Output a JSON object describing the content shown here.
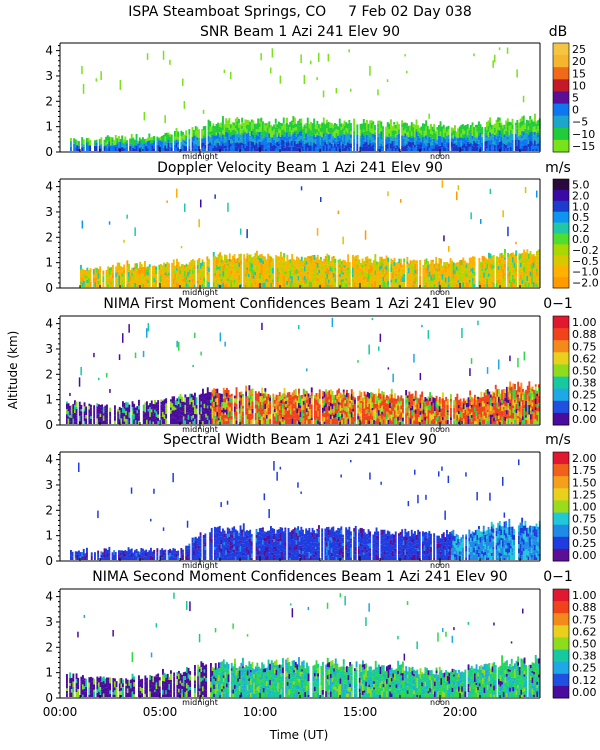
{
  "header": {
    "station": "ISPA Steamboat Springs, CO",
    "date": "7 Feb 02 Day 038"
  },
  "x_axis": {
    "label": "Time (UT)",
    "ticks": [
      "00:00",
      "05:00",
      "10:00",
      "15:00",
      "20:00"
    ],
    "tick_hours": [
      0,
      5,
      10,
      15,
      20
    ],
    "range_hours": [
      0,
      24
    ],
    "markers": [
      {
        "label": "midnight",
        "hour": 7.0
      },
      {
        "label": "noon",
        "hour": 19.0
      }
    ]
  },
  "y_axis": {
    "label": "Altitude (km)",
    "ticks": [
      "0",
      "1",
      "2",
      "3",
      "4"
    ],
    "range_km": [
      0,
      4.3
    ]
  },
  "colors": {
    "snr": [
      "#78e21a",
      "#20cb3c",
      "#1ea5cc",
      "#0d76f0",
      "#1b36c8",
      "#5a0f96",
      "#c41a27",
      "#f06a1a",
      "#f5b52d",
      "#f5c542"
    ],
    "velocity": [
      "#ff9a00",
      "#ffb000",
      "#d8c800",
      "#a8d800",
      "#50dd30",
      "#20c8a8",
      "#0c96f0",
      "#1c3ccc",
      "#3a0aa6",
      "#2a0a3c"
    ],
    "confidence": [
      "#4a0c9c",
      "#2050e0",
      "#1ea8e6",
      "#18c8a0",
      "#30d848",
      "#8edc1c",
      "#e8d01c",
      "#f58a1c",
      "#f0431c",
      "#e01830"
    ],
    "width": [
      "#5a0f96",
      "#1e3ce0",
      "#1e8ce6",
      "#20c8d8",
      "#30d848",
      "#9adc1c",
      "#e8d01c",
      "#f5a01c",
      "#f0621c",
      "#e01830"
    ]
  },
  "chart_data": [
    {
      "type": "heatmap",
      "title": "SNR Beam 1 Azi 241 Elev 90",
      "unit": "dB",
      "colorbar_labels": [
        "25",
        "20",
        "15",
        "10",
        "5",
        "0",
        "−5",
        "−10",
        "−15"
      ],
      "colorbar_range": [
        -17,
        28
      ],
      "palette": "snr",
      "xlabel": "Time (UT)",
      "ylabel": "Altitude (km)",
      "xlim": [
        0,
        24
      ],
      "ylim": [
        0,
        4.3
      ],
      "main_layer_top_km": [
        [
          0,
          0.4
        ],
        [
          2,
          0.45
        ],
        [
          4,
          0.5
        ],
        [
          6,
          0.75
        ],
        [
          8,
          1.15
        ],
        [
          10,
          1.15
        ],
        [
          12,
          1.15
        ],
        [
          14,
          1.1
        ],
        [
          16,
          1.1
        ],
        [
          18,
          1.0
        ],
        [
          20,
          0.9
        ],
        [
          22,
          1.2
        ],
        [
          24,
          1.3
        ]
      ],
      "layer_values_db": {
        "near_surface": -8,
        "layer_core": -13,
        "upper_sparse": -15
      },
      "data_extent_hours": [
        0.5,
        24
      ]
    },
    {
      "type": "heatmap",
      "title": "Doppler Velocity Beam 1 Azi 241 Elev 90",
      "unit": "m/s",
      "colorbar_labels": [
        "5.0",
        "2.0",
        "1.0",
        "0.5",
        "0.2",
        "0.0",
        "−0.2",
        "−0.5",
        "−1.0",
        "−2.0"
      ],
      "colorbar_range": [
        -2.0,
        5.0
      ],
      "palette": "velocity",
      "xlabel": "Time (UT)",
      "ylabel": "Altitude (km)",
      "xlim": [
        0,
        24
      ],
      "ylim": [
        0,
        4.3
      ],
      "main_layer_top_km": [
        [
          0,
          0.6
        ],
        [
          3,
          0.8
        ],
        [
          6,
          0.9
        ],
        [
          7.5,
          1.2
        ],
        [
          10,
          1.2
        ],
        [
          13,
          1.15
        ],
        [
          16,
          1.1
        ],
        [
          18.5,
          1.0
        ],
        [
          20,
          1.0
        ],
        [
          22,
          1.3
        ],
        [
          24,
          1.4
        ]
      ],
      "layer_values_ms": {
        "dominant": -0.5,
        "secondary": 0.0,
        "sparse_high": 1.0
      },
      "data_extent_hours": [
        1.0,
        24
      ]
    },
    {
      "type": "heatmap",
      "title": "NIMA First Moment Confidences Beam 1 Azi 241 Elev 90",
      "unit": "0−1",
      "colorbar_labels": [
        "1.00",
        "0.88",
        "0.75",
        "0.62",
        "0.50",
        "0.38",
        "0.25",
        "0.12",
        "0.00"
      ],
      "colorbar_range": [
        0.0,
        1.0
      ],
      "palette": "confidence",
      "xlabel": "Time (UT)",
      "ylabel": "Altitude (km)",
      "xlim": [
        0,
        24
      ],
      "ylim": [
        0,
        4.3
      ],
      "main_layer_top_km": [
        [
          0,
          0.8
        ],
        [
          3,
          0.7
        ],
        [
          6,
          1.0
        ],
        [
          7.5,
          1.3
        ],
        [
          10,
          1.3
        ],
        [
          13,
          1.25
        ],
        [
          16,
          1.2
        ],
        [
          18.5,
          1.05
        ],
        [
          20,
          1.0
        ],
        [
          22,
          1.4
        ],
        [
          24,
          1.45
        ]
      ],
      "layer_values": {
        "early_low_confidence": 0.0,
        "daytime_core": 0.92,
        "upper_sparse": 0.4
      },
      "data_extent_hours": [
        0.3,
        24
      ]
    },
    {
      "type": "heatmap",
      "title": "Spectral Width Beam 1 Azi 241 Elev 90",
      "unit": "m/s",
      "colorbar_labels": [
        "2.00",
        "1.75",
        "1.50",
        "1.25",
        "1.00",
        "0.75",
        "0.50",
        "0.25",
        "0.00"
      ],
      "colorbar_range": [
        0.0,
        2.25
      ],
      "palette": "width",
      "xlabel": "Time (UT)",
      "ylabel": "Altitude (km)",
      "xlim": [
        0,
        24
      ],
      "ylim": [
        0,
        4.3
      ],
      "main_layer_top_km": [
        [
          0,
          0.3
        ],
        [
          6,
          0.4
        ],
        [
          7.5,
          1.2
        ],
        [
          10,
          1.2
        ],
        [
          13,
          1.2
        ],
        [
          16,
          1.15
        ],
        [
          18.5,
          1.0
        ],
        [
          20,
          1.0
        ],
        [
          22,
          1.4
        ],
        [
          24,
          1.4
        ]
      ],
      "layer_values_ms": {
        "dominant": 0.25,
        "evening": 0.55,
        "sparse_high": 0.25
      },
      "data_extent_hours": [
        0.5,
        24
      ]
    },
    {
      "type": "heatmap",
      "title": "NIMA Second Moment Confidences Beam 1 Azi 241 Elev 90",
      "unit": "0−1",
      "colorbar_labels": [
        "1.00",
        "0.88",
        "0.75",
        "0.62",
        "0.50",
        "0.38",
        "0.25",
        "0.12",
        "0.00"
      ],
      "colorbar_range": [
        0.0,
        1.0
      ],
      "palette": "confidence",
      "xlabel": "Time (UT)",
      "ylabel": "Altitude (km)",
      "xlim": [
        0,
        24
      ],
      "ylim": [
        0,
        4.3
      ],
      "main_layer_top_km": [
        [
          0,
          0.8
        ],
        [
          3,
          0.7
        ],
        [
          6,
          1.0
        ],
        [
          7.5,
          1.3
        ],
        [
          10,
          1.3
        ],
        [
          13,
          1.3
        ],
        [
          16,
          1.2
        ],
        [
          18.5,
          1.05
        ],
        [
          20,
          1.0
        ],
        [
          22,
          1.35
        ],
        [
          24,
          1.4
        ]
      ],
      "layer_values": {
        "early_low_confidence": 0.0,
        "daytime_core": 0.45,
        "upper_sparse": 0.3
      },
      "data_extent_hours": [
        0.3,
        24
      ]
    }
  ]
}
